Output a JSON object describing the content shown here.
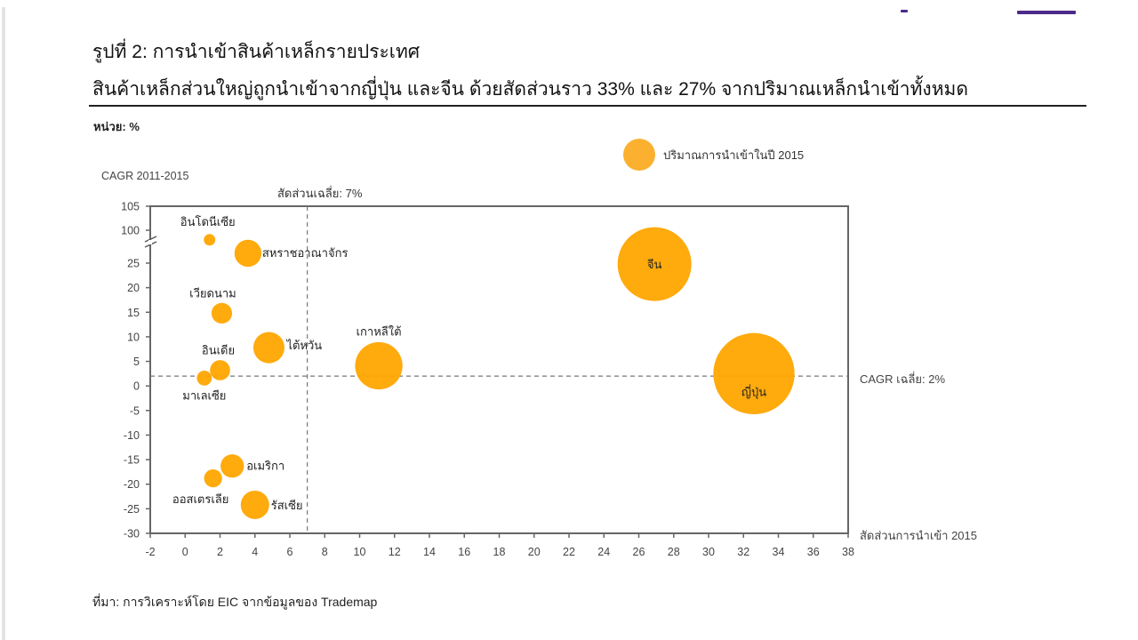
{
  "header": {
    "figure_title": "รูปที่ 2: การนำเข้าสินค้าเหล็กรายประเทศ",
    "subtitle": "สินค้าเหล็กส่วนใหญ่ถูกนำเข้าจากญี่ปุ่น และจีน ด้วยสัดส่วนราว 33% และ 27% จากปริมาณเหล็กนำเข้าทั้งหมด"
  },
  "unit_label": "หน่วย: %",
  "legend": {
    "label": "ปริมาณการนำเข้าในปี  2015",
    "color": "#fbb12f"
  },
  "annotations": {
    "avg_share": "สัดส่วนเฉลี่ย: 7%",
    "avg_cagr": "CAGR เฉลี่ย: 2%"
  },
  "source": "ที่มา: การวิเคราะห์โดย EIC จากข้อมูลของ Trademap",
  "colors": {
    "bubble": "#ffa500",
    "legend_bubble": "#fbb12f",
    "accent_bar": "#4b2a8a",
    "axis": "#666666"
  },
  "chart_data": {
    "type": "scatter",
    "subtype": "bubble",
    "title": "การนำเข้าสินค้าเหล็กรายประเทศ",
    "xlabel": "สัดส่วนการนำเข้า 2015",
    "ylabel": "CAGR 2011-2015",
    "xlim": [
      -2,
      38
    ],
    "ylim": [
      -30,
      105
    ],
    "y_axis_break": "between 25 and 100",
    "x_ticks": [
      -2,
      0,
      2,
      4,
      6,
      8,
      10,
      12,
      14,
      16,
      18,
      20,
      22,
      24,
      26,
      28,
      30,
      32,
      34,
      36,
      38
    ],
    "y_ticks": [
      105,
      100,
      25,
      20,
      15,
      10,
      5,
      0,
      -5,
      -10,
      -15,
      -20,
      -25,
      -30
    ],
    "grid": false,
    "legend_position": "top-right",
    "reference_lines": [
      {
        "axis": "x",
        "value": 7,
        "label": "สัดส่วนเฉลี่ย: 7%",
        "style": "dashed"
      },
      {
        "axis": "y",
        "value": 2,
        "label": "CAGR เฉลี่ย: 2%",
        "style": "dashed"
      }
    ],
    "points": [
      {
        "name": "อินโดนีเซีย",
        "x": 1.4,
        "y": 98,
        "size": 0.5
      },
      {
        "name": "สหราชอาณาจักร",
        "x": 3.6,
        "y": 27,
        "size": 3.6
      },
      {
        "name": "เวียดนาม",
        "x": 2.1,
        "y": 14.8,
        "size": 2.1
      },
      {
        "name": "ไต้หวัน",
        "x": 4.8,
        "y": 7.8,
        "size": 4.8
      },
      {
        "name": "อินเดีย",
        "x": 2.0,
        "y": 3.2,
        "size": 2.0
      },
      {
        "name": "มาเลเซีย",
        "x": 1.1,
        "y": 1.6,
        "size": 1.1
      },
      {
        "name": "เกาหลีใต้",
        "x": 11.1,
        "y": 4.1,
        "size": 11.1
      },
      {
        "name": "จีน",
        "x": 26.9,
        "y": 24.8,
        "size": 26.9
      },
      {
        "name": "ญี่ปุ่น",
        "x": 32.6,
        "y": 2.5,
        "size": 32.6
      },
      {
        "name": "อเมริกา",
        "x": 2.7,
        "y": -16.3,
        "size": 2.7
      },
      {
        "name": "ออสเตรเลีย",
        "x": 1.6,
        "y": -18.8,
        "size": 1.6
      },
      {
        "name": "รัสเซีย",
        "x": 4.0,
        "y": -24.2,
        "size": 4.0
      }
    ]
  }
}
